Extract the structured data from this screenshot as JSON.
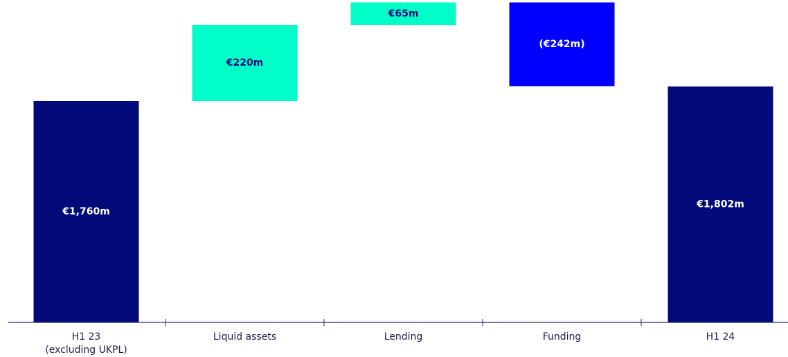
{
  "chart_data": {
    "type": "waterfall",
    "categories": [
      "H1 23\n(excluding UKPL)",
      "Liquid assets",
      "Lending",
      "Funding",
      "H1 24"
    ],
    "values": [
      1760,
      220,
      65,
      -242,
      1802
    ],
    "value_labels": [
      "€1,760m",
      "€220m",
      "€65m",
      "(€242m)",
      "€1,802m"
    ],
    "measure": [
      "total",
      "relative",
      "relative",
      "relative",
      "total"
    ],
    "colors": {
      "total": "#020a7a",
      "increase": "#00ffc8",
      "decrease": "#0000ff"
    },
    "ylim": [
      1120,
      2052
    ]
  }
}
